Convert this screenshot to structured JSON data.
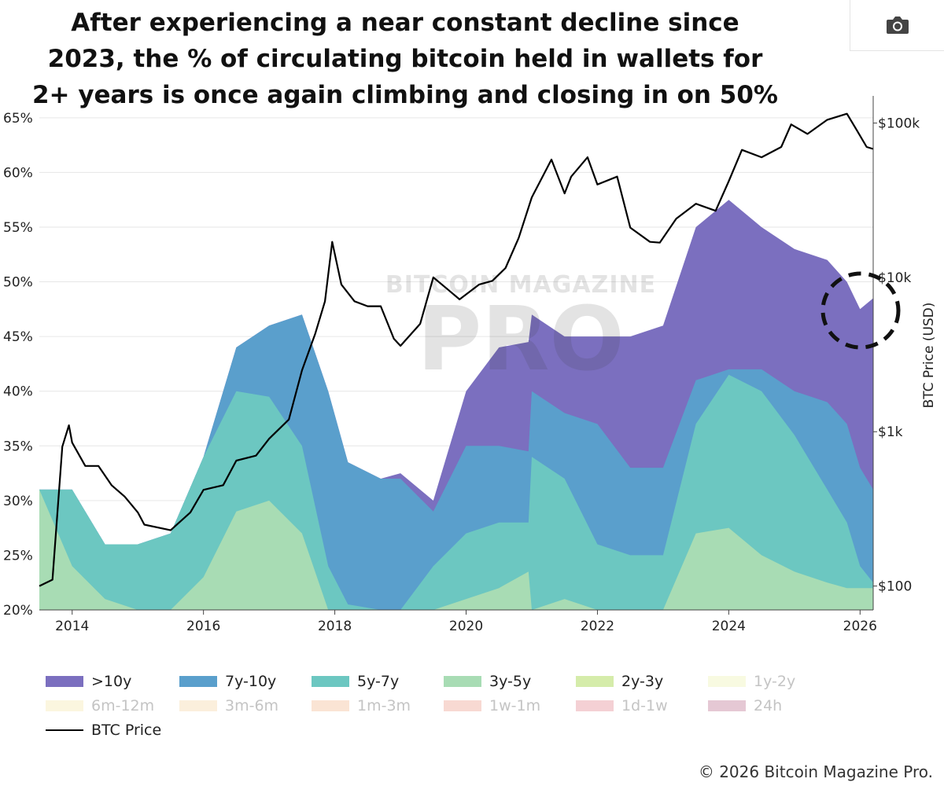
{
  "title_lines": [
    "After experiencing a near constant decline since",
    "2023, the % of circulating bitcoin held in wallets for",
    "2+ years is once again climbing and closing in on 50%"
  ],
  "toolbar": {
    "camera_icon": "camera-icon"
  },
  "watermark": {
    "top": "BITCOIN MAGAZINE",
    "bottom": "PRO"
  },
  "copyright": "© 2026 Bitcoin Magazine Pro.",
  "colors": {
    "gt10y": "#7b6fbf",
    "7y10y": "#5a9fcc",
    "5y7y": "#6cc7c1",
    "3y5y": "#a8dcb4",
    "2y3y": "#d5ecaa",
    "1y2y": "#f2f6c8",
    "6m12m": "#f7efc4",
    "3m6m": "#f8e1c0",
    "1m3m": "#f6cdb0",
    "1w1m": "#f3b9ad",
    "1d1w": "#eba9b0",
    "24h": "#d09bb0"
  },
  "chart_data": {
    "type": "area",
    "x": [
      2013.5,
      2014.0,
      2014.5,
      2015.0,
      2015.5,
      2016.0,
      2016.5,
      2017.0,
      2017.5,
      2017.9,
      2018.2,
      2018.7,
      2019.0,
      2019.5,
      2020.0,
      2020.5,
      2020.95,
      2021.0,
      2021.5,
      2022.0,
      2022.5,
      2023.0,
      2023.5,
      2024.0,
      2024.5,
      2025.0,
      2025.5,
      2025.8,
      2026.0,
      2026.2
    ],
    "series": [
      {
        "name": "3y-5y",
        "color_key": "3y5y",
        "cum": [
          31,
          24,
          21,
          20,
          20,
          23,
          29,
          30,
          27,
          20,
          20,
          20,
          20,
          20,
          21,
          22,
          23.5,
          20,
          21,
          20,
          20,
          20,
          27,
          27.5,
          25,
          23.5,
          22.5,
          22,
          22,
          22
        ]
      },
      {
        "name": "5y-7y",
        "color_key": "5y7y",
        "cum": [
          31,
          31,
          26,
          26,
          27,
          34,
          40,
          39.5,
          35,
          24,
          20.5,
          20,
          20,
          24,
          27,
          28,
          28,
          34,
          32,
          26,
          25,
          25,
          37,
          41.5,
          40,
          36,
          31,
          28,
          24,
          22.5
        ]
      },
      {
        "name": "7y-10y",
        "color_key": "7y10y",
        "cum": [
          31,
          31,
          26,
          26,
          27,
          34,
          44,
          46,
          47,
          40,
          33.5,
          32,
          32,
          29,
          35,
          35,
          34.5,
          40,
          38,
          37,
          33,
          33,
          41,
          42,
          42,
          40,
          39,
          37,
          33,
          31
        ]
      },
      {
        "name": ">10y",
        "color_key": "gt10y",
        "cum": [
          31,
          31,
          26,
          26,
          27,
          34,
          44,
          46,
          47,
          40,
          33.5,
          32,
          32.5,
          30,
          40,
          44,
          44.5,
          47,
          45,
          45,
          45,
          46,
          55,
          57.5,
          55,
          53,
          52,
          50,
          47.5,
          48.5
        ]
      }
    ],
    "btc_price": {
      "name": "BTC Price",
      "x": [
        2013.5,
        2013.7,
        2013.85,
        2013.95,
        2014.0,
        2014.2,
        2014.4,
        2014.6,
        2014.8,
        2015.0,
        2015.1,
        2015.5,
        2015.8,
        2016.0,
        2016.3,
        2016.5,
        2016.8,
        2017.0,
        2017.3,
        2017.5,
        2017.7,
        2017.85,
        2017.96,
        2018.1,
        2018.3,
        2018.5,
        2018.7,
        2018.9,
        2019.0,
        2019.3,
        2019.5,
        2019.7,
        2019.9,
        2020.2,
        2020.4,
        2020.6,
        2020.8,
        2021.0,
        2021.3,
        2021.5,
        2021.6,
        2021.85,
        2022.0,
        2022.3,
        2022.5,
        2022.8,
        2022.95,
        2023.2,
        2023.5,
        2023.8,
        2024.0,
        2024.2,
        2024.5,
        2024.8,
        2024.95,
        2025.2,
        2025.5,
        2025.8,
        2025.95,
        2026.1,
        2026.2
      ],
      "values": [
        100,
        110,
        800,
        1100,
        850,
        600,
        600,
        450,
        380,
        300,
        250,
        230,
        300,
        420,
        450,
        650,
        700,
        900,
        1200,
        2500,
        4300,
        7000,
        17000,
        9000,
        7000,
        6500,
        6500,
        4000,
        3600,
        5000,
        10000,
        8500,
        7200,
        9000,
        9500,
        11500,
        18000,
        33000,
        58000,
        35000,
        45000,
        60000,
        40000,
        45000,
        21000,
        17000,
        16800,
        24000,
        30000,
        27000,
        42000,
        67000,
        60000,
        70000,
        98000,
        85000,
        105000,
        115000,
        90000,
        70000,
        68000
      ]
    },
    "x_ticks": [
      "2014",
      "2016",
      "2018",
      "2020",
      "2022",
      "2024",
      "2026"
    ],
    "y_ticks": [
      "20%",
      "25%",
      "30%",
      "35%",
      "40%",
      "45%",
      "50%",
      "55%",
      "60%",
      "65%"
    ],
    "y2_ticks": [
      "$100",
      "$1k",
      "$10k",
      "$100k"
    ],
    "y2_label": "BTC Price (USD)",
    "ylim": [
      20,
      67
    ],
    "y2_log": true,
    "y2_lim": [
      70,
      150000
    ],
    "grid": true,
    "annotation": "dashed-circle",
    "legend_position": "bottom",
    "legend": [
      {
        "label": ">10y",
        "color_key": "gt10y",
        "faded": false
      },
      {
        "label": "7y-10y",
        "color_key": "7y10y",
        "faded": false
      },
      {
        "label": "5y-7y",
        "color_key": "5y7y",
        "faded": false
      },
      {
        "label": "3y-5y",
        "color_key": "3y5y",
        "faded": false
      },
      {
        "label": "2y-3y",
        "color_key": "2y3y",
        "faded": false
      },
      {
        "label": "1y-2y",
        "color_key": "1y2y",
        "faded": true
      },
      {
        "label": "6m-12m",
        "color_key": "6m12m",
        "faded": true
      },
      {
        "label": "3m-6m",
        "color_key": "3m6m",
        "faded": true
      },
      {
        "label": "1m-3m",
        "color_key": "1m3m",
        "faded": true
      },
      {
        "label": "1w-1m",
        "color_key": "1w1m",
        "faded": true
      },
      {
        "label": "1d-1w",
        "color_key": "1d1w",
        "faded": true
      },
      {
        "label": "24h",
        "color_key": "24h",
        "faded": true
      },
      {
        "label": "BTC Price",
        "color_key": null,
        "faded": false
      }
    ]
  }
}
